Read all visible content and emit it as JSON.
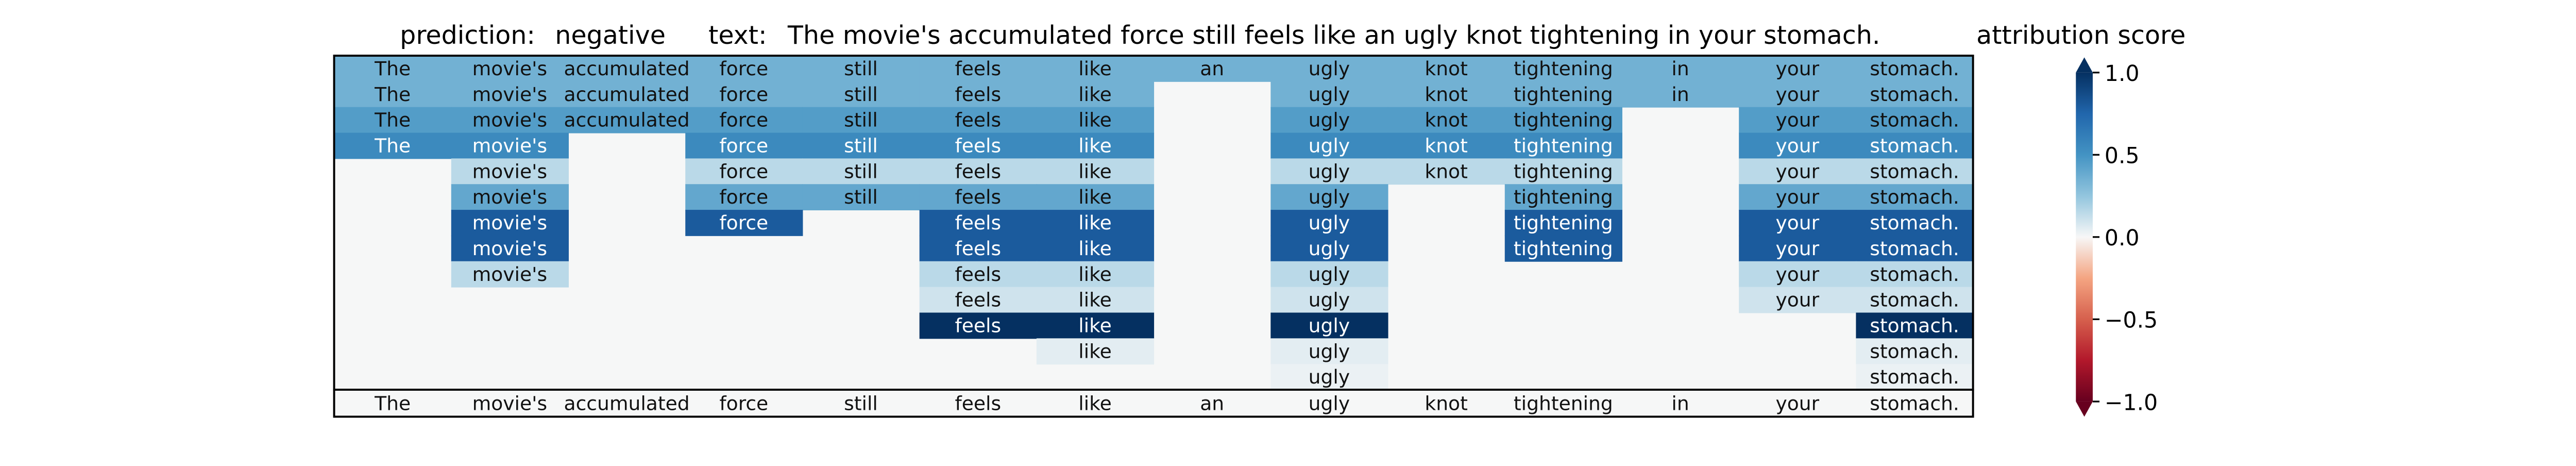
{
  "header": {
    "prediction_label": "prediction:",
    "prediction_value": "negative",
    "text_label": "text:",
    "text_value": "The movie's accumulated force still feels like an ugly knot tightening in your stomach."
  },
  "chart_data": {
    "type": "heatmap",
    "tokens": [
      "The",
      "movie's",
      "accumulated",
      "force",
      "still",
      "feels",
      "like",
      "an",
      "ugly",
      "knot",
      "tightening",
      "in",
      "your",
      "stomach."
    ],
    "rows": [
      [
        0.35,
        0.35,
        0.35,
        0.35,
        0.35,
        0.35,
        0.35,
        0.35,
        0.35,
        0.35,
        0.35,
        0.35,
        0.35,
        0.35
      ],
      [
        0.35,
        0.35,
        0.35,
        0.35,
        0.35,
        0.35,
        0.35,
        null,
        0.35,
        0.35,
        0.35,
        0.35,
        0.35,
        0.35
      ],
      [
        0.45,
        0.45,
        0.45,
        0.45,
        0.45,
        0.45,
        0.45,
        null,
        0.45,
        0.45,
        0.45,
        null,
        0.45,
        0.45
      ],
      [
        0.55,
        0.55,
        null,
        0.55,
        0.55,
        0.55,
        0.55,
        null,
        0.55,
        0.55,
        0.55,
        null,
        0.55,
        0.55
      ],
      [
        null,
        0.15,
        null,
        0.15,
        0.15,
        0.15,
        0.15,
        null,
        0.15,
        0.15,
        0.15,
        null,
        0.15,
        0.15
      ],
      [
        null,
        0.4,
        null,
        0.4,
        0.4,
        0.4,
        0.4,
        null,
        0.4,
        null,
        0.4,
        null,
        0.4,
        0.4
      ],
      [
        null,
        0.8,
        null,
        0.8,
        null,
        0.8,
        0.8,
        null,
        0.8,
        null,
        0.8,
        null,
        0.8,
        0.8
      ],
      [
        null,
        0.8,
        null,
        null,
        null,
        0.8,
        0.8,
        null,
        0.8,
        null,
        0.8,
        null,
        0.8,
        0.8
      ],
      [
        null,
        0.15,
        null,
        null,
        null,
        0.15,
        0.15,
        null,
        0.15,
        null,
        null,
        null,
        0.15,
        0.15
      ],
      [
        null,
        null,
        null,
        null,
        null,
        0.1,
        0.1,
        null,
        0.1,
        null,
        null,
        null,
        0.1,
        0.1
      ],
      [
        null,
        null,
        null,
        null,
        null,
        1.0,
        1.0,
        null,
        1.0,
        null,
        null,
        null,
        null,
        1.0
      ],
      [
        null,
        null,
        null,
        null,
        null,
        null,
        0.05,
        null,
        0.05,
        null,
        null,
        null,
        null,
        0.05
      ],
      [
        null,
        null,
        null,
        null,
        null,
        null,
        null,
        null,
        0.03,
        null,
        null,
        null,
        null,
        0.03
      ]
    ],
    "colorbar": {
      "title": "attribution score",
      "min": -1.0,
      "max": 1.0,
      "ticks": [
        1.0,
        0.5,
        0.0,
        -0.5,
        -1.0
      ],
      "tick_labels": [
        "1.0",
        "0.5",
        "0.0",
        "−0.5",
        "−1.0"
      ],
      "colormap": "RdBu"
    }
  }
}
